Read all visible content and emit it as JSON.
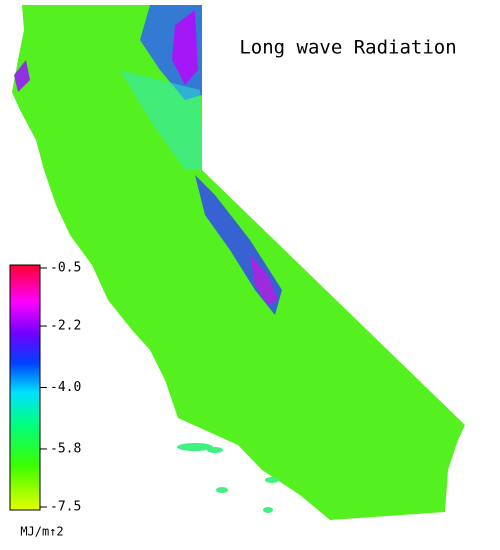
{
  "title": "Long wave Radiation",
  "colorbar": {
    "lim": [
      -7.5,
      -0.5
    ],
    "ticks": [
      -0.5,
      -2.2,
      {
        "value": -4,
        "label": "-4.0"
      },
      -5.8,
      -7.5
    ],
    "unit": "MJ/m↑2"
  }
}
